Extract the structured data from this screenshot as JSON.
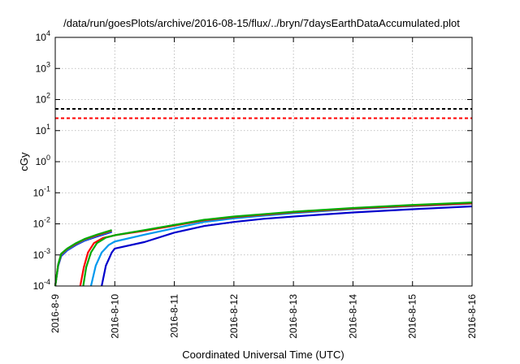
{
  "chart_data": {
    "type": "line",
    "title": "/data/run/goesPlots/archive/2016-08-15/flux/../bryn/7daysEarthDataAccumulated.plot",
    "xlabel": "Coordinated Universal Time (UTC)",
    "ylabel": "cGy",
    "x_ticks": [
      "2016-8-9",
      "2016-8-10",
      "2016-8-11",
      "2016-8-12",
      "2016-8-13",
      "2016-8-14",
      "2016-8-15",
      "2016-8-16"
    ],
    "xlim": [
      0,
      7
    ],
    "ylim_exponent": [
      -4,
      4
    ],
    "y_scale": "log",
    "y_ticks": [
      {
        "base": "10",
        "exp": "-4",
        "value": 0.0001
      },
      {
        "base": "10",
        "exp": "-3",
        "value": 0.001
      },
      {
        "base": "10",
        "exp": "-2",
        "value": 0.01
      },
      {
        "base": "10",
        "exp": "-1",
        "value": 0.1
      },
      {
        "base": "10",
        "exp": "0",
        "value": 1
      },
      {
        "base": "10",
        "exp": "1",
        "value": 10
      },
      {
        "base": "10",
        "exp": "2",
        "value": 100
      },
      {
        "base": "10",
        "exp": "3",
        "value": 1000
      },
      {
        "base": "10",
        "exp": "4",
        "value": 10000
      }
    ],
    "grid": true,
    "thresholds": [
      {
        "value": 50,
        "color": "#000000",
        "style": "dashed"
      },
      {
        "value": 25,
        "color": "#ff0000",
        "style": "dashed"
      }
    ],
    "series": [
      {
        "color": "#00aa00",
        "segments": [
          [
            [
              0.0,
              0.0001
            ],
            [
              0.05,
              0.0005
            ],
            [
              0.1,
              0.0011
            ],
            [
              0.2,
              0.0016
            ],
            [
              0.35,
              0.0024
            ],
            [
              0.5,
              0.0033
            ],
            [
              0.7,
              0.0045
            ],
            [
              0.95,
              0.0063
            ]
          ],
          [
            [
              0.47,
              0.0001
            ],
            [
              0.52,
              0.0004
            ],
            [
              0.6,
              0.0012
            ],
            [
              0.7,
              0.0024
            ],
            [
              0.85,
              0.0036
            ],
            [
              1.0,
              0.0043
            ],
            [
              1.5,
              0.0063
            ],
            [
              2.0,
              0.0092
            ],
            [
              2.5,
              0.0135
            ],
            [
              3.0,
              0.0172
            ],
            [
              3.5,
              0.0205
            ],
            [
              4.0,
              0.0245
            ],
            [
              5.0,
              0.0325
            ],
            [
              6.0,
              0.0405
            ],
            [
              7.0,
              0.0485
            ]
          ]
        ]
      },
      {
        "color": "#ff0000",
        "segments": [
          [
            [
              0.0,
              0.0001
            ],
            [
              0.05,
              0.0005
            ],
            [
              0.1,
              0.00105
            ],
            [
              0.2,
              0.00155
            ],
            [
              0.35,
              0.0023
            ],
            [
              0.5,
              0.0032
            ],
            [
              0.7,
              0.0043
            ],
            [
              0.95,
              0.006
            ]
          ],
          [
            [
              0.42,
              0.0001
            ],
            [
              0.48,
              0.0004
            ],
            [
              0.55,
              0.0012
            ],
            [
              0.65,
              0.0024
            ],
            [
              0.8,
              0.0035
            ],
            [
              1.0,
              0.0043
            ],
            [
              1.5,
              0.006
            ],
            [
              2.0,
              0.0088
            ],
            [
              2.5,
              0.013
            ],
            [
              3.0,
              0.0165
            ],
            [
              3.5,
              0.0197
            ],
            [
              4.0,
              0.0235
            ],
            [
              5.0,
              0.031
            ],
            [
              6.0,
              0.0385
            ],
            [
              7.0,
              0.0455
            ]
          ]
        ]
      },
      {
        "color": "#0099ee",
        "segments": [
          [
            [
              0.0,
              0.0001
            ],
            [
              0.05,
              0.00048
            ],
            [
              0.1,
              0.00098
            ],
            [
              0.2,
              0.00145
            ],
            [
              0.35,
              0.0022
            ],
            [
              0.5,
              0.003
            ],
            [
              0.7,
              0.0041
            ],
            [
              0.95,
              0.0057
            ]
          ],
          [
            [
              0.6,
              0.0001
            ],
            [
              0.68,
              0.00045
            ],
            [
              0.78,
              0.0012
            ],
            [
              0.9,
              0.0021
            ],
            [
              1.0,
              0.0027
            ],
            [
              1.5,
              0.0045
            ],
            [
              2.0,
              0.0072
            ],
            [
              2.5,
              0.0115
            ],
            [
              3.0,
              0.015
            ],
            [
              3.5,
              0.0182
            ],
            [
              4.0,
              0.022
            ],
            [
              5.0,
              0.0298
            ],
            [
              6.0,
              0.037
            ],
            [
              7.0,
              0.0445
            ]
          ]
        ]
      },
      {
        "color": "#0000cc",
        "segments": [
          [
            [
              0.0,
              0.0001
            ],
            [
              0.05,
              0.00045
            ],
            [
              0.1,
              0.00092
            ],
            [
              0.2,
              0.0014
            ],
            [
              0.35,
              0.0021
            ],
            [
              0.5,
              0.0029
            ],
            [
              0.7,
              0.0039
            ],
            [
              0.95,
              0.0055
            ]
          ],
          [
            [
              0.78,
              0.0001
            ],
            [
              0.85,
              0.00045
            ],
            [
              0.95,
              0.0012
            ],
            [
              1.0,
              0.0016
            ],
            [
              1.5,
              0.0026
            ],
            [
              2.0,
              0.0052
            ],
            [
              2.5,
              0.0085
            ],
            [
              3.0,
              0.0115
            ],
            [
              3.5,
              0.0145
            ],
            [
              4.0,
              0.0172
            ],
            [
              5.0,
              0.0232
            ],
            [
              6.0,
              0.0295
            ],
            [
              7.0,
              0.0365
            ]
          ]
        ]
      }
    ]
  }
}
